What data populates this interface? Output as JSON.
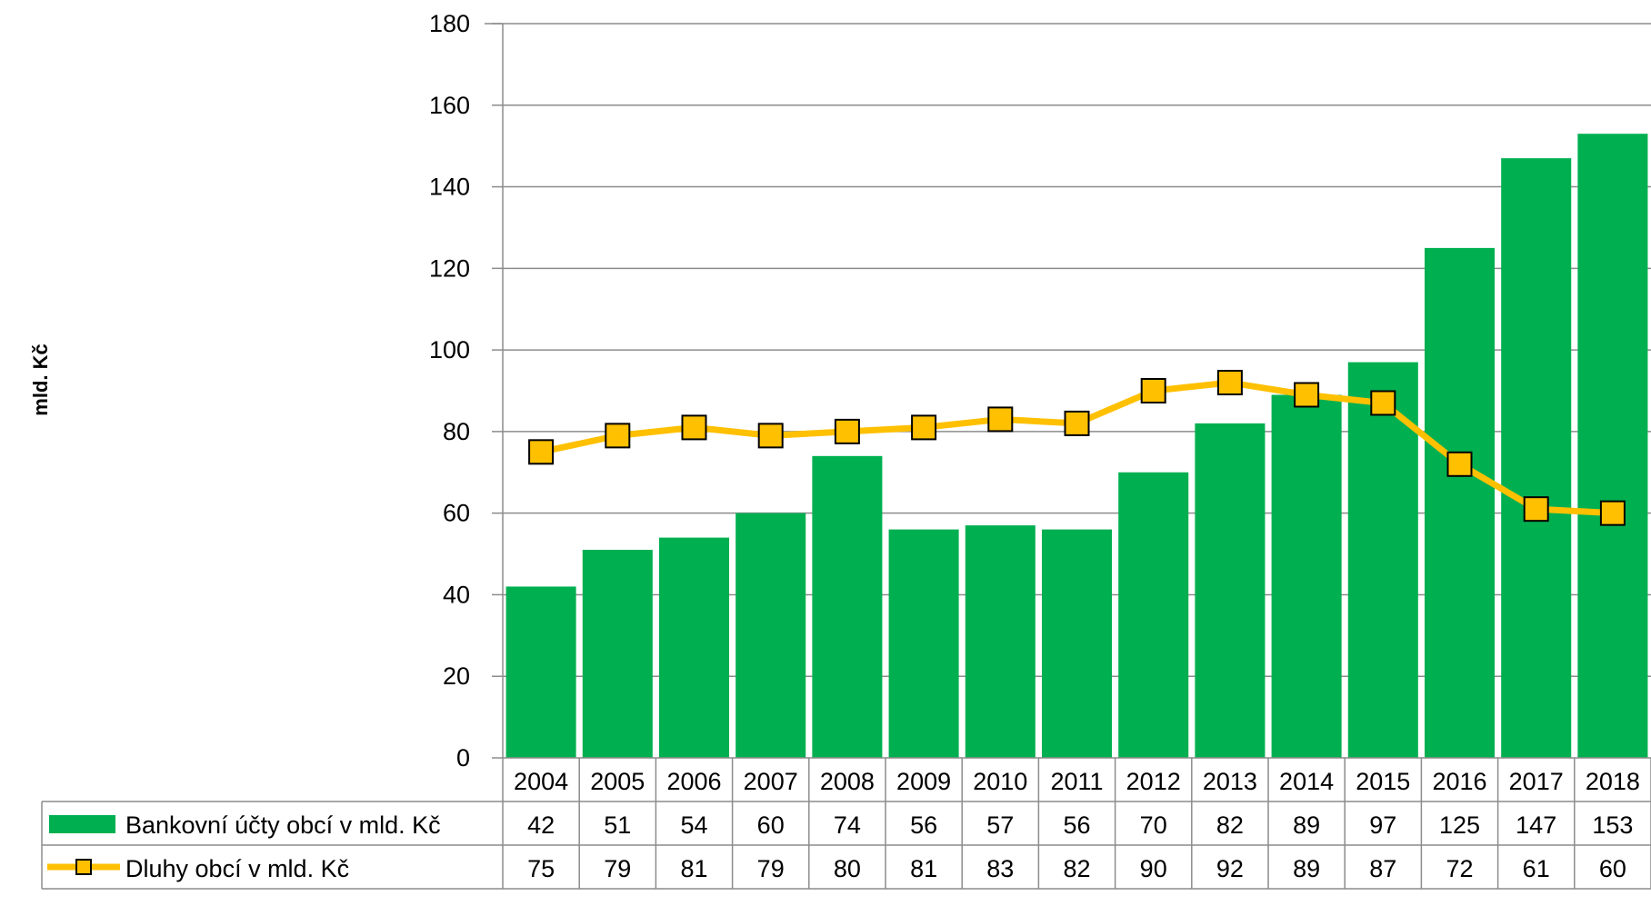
{
  "chart_data": {
    "type": "bar",
    "ylabel": "mld. Kč",
    "ylim": [
      0,
      180
    ],
    "yticks": [
      0,
      20,
      40,
      60,
      80,
      100,
      120,
      140,
      160,
      180
    ],
    "grid": true,
    "legend_placement": "data-table-below",
    "categories": [
      "2004",
      "2005",
      "2006",
      "2007",
      "2008",
      "2009",
      "2010",
      "2011",
      "2012",
      "2013",
      "2014",
      "2015",
      "2016",
      "2017",
      "2018"
    ],
    "series": [
      {
        "name": "Bankovní účty obcí v mld. Kč",
        "type": "bar",
        "color": "#00B050",
        "values": [
          42,
          51,
          54,
          60,
          74,
          56,
          57,
          56,
          70,
          82,
          89,
          97,
          125,
          147,
          153
        ]
      },
      {
        "name": "Dluhy obcí v mld. Kč",
        "type": "line",
        "color": "#FFC000",
        "marker": "square",
        "values": [
          75,
          79,
          81,
          79,
          80,
          81,
          83,
          82,
          90,
          92,
          89,
          87,
          72,
          61,
          60
        ]
      }
    ]
  }
}
